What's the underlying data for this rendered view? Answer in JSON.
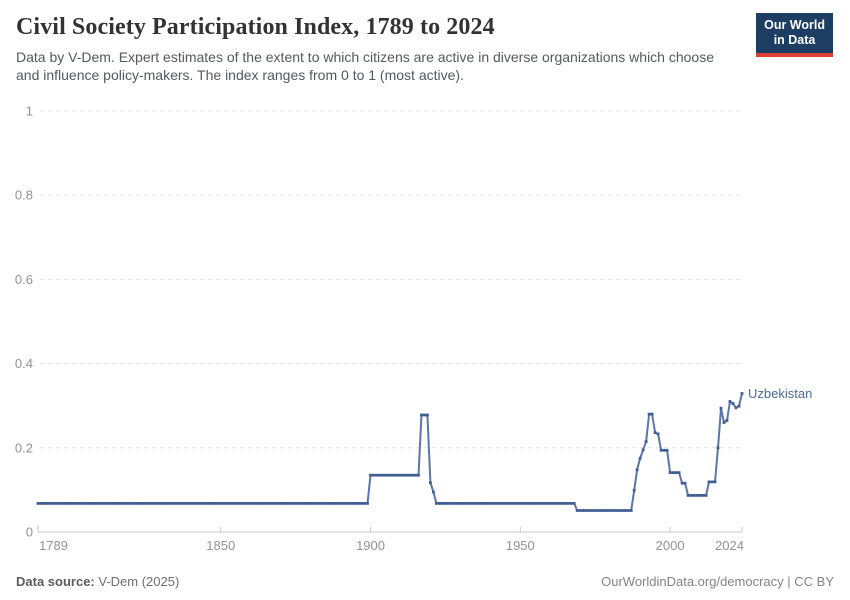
{
  "header": {
    "title": "Civil Society Participation Index, 1789 to 2024",
    "subtitle": "Data by V-Dem. Expert estimates of the extent to which citizens are active in diverse organizations which choose and influence policy-makers. The index ranges from 0 to 1 (most active).",
    "logo": {
      "line1": "Our World",
      "line2": "in Data",
      "bg_color": "#1d3d63",
      "accent_color": "#dc3e32"
    }
  },
  "footer": {
    "source_label": "Data source:",
    "source_value": " V-Dem (2025)",
    "credit": "OurWorldinData.org/democracy | CC BY"
  },
  "chart_data": {
    "type": "line",
    "title": "Civil Society Participation Index, 1789 to 2024",
    "xlabel": "",
    "ylabel": "",
    "x": {
      "min": 1789,
      "max": 2024,
      "ticks": [
        1789,
        1850,
        1900,
        1950,
        2000,
        2024
      ]
    },
    "y": {
      "min": 0,
      "max": 1,
      "ticks": [
        0,
        0.2,
        0.4,
        0.6,
        0.8,
        1
      ]
    },
    "grid": "horizontal-dashed",
    "legend": "end-of-line-label",
    "layout": {
      "grid_color": "#e0e0e0",
      "axis_color": "#c8c8c8",
      "tick_color": "#939393",
      "tick_font_size": 13
    },
    "series": [
      {
        "name": "Uzbekistan",
        "color": "#5b76a8",
        "marker_color": "#3f5c91",
        "label_color": "#4c6a9c",
        "value_hold": "each [year,value] pair holds for subsequent years until the next breakpoint; markers are drawn for every year 1789-2024",
        "points": [
          [
            1789,
            0.068
          ],
          [
            1900,
            0.135
          ],
          [
            1917,
            0.278
          ],
          [
            1920,
            0.117
          ],
          [
            1921,
            0.095
          ],
          [
            1922,
            0.068
          ],
          [
            1969,
            0.051
          ],
          [
            1988,
            0.099
          ],
          [
            1989,
            0.148
          ],
          [
            1990,
            0.175
          ],
          [
            1991,
            0.195
          ],
          [
            1992,
            0.215
          ],
          [
            1993,
            0.28
          ],
          [
            1995,
            0.236
          ],
          [
            1996,
            0.233
          ],
          [
            1997,
            0.194
          ],
          [
            2000,
            0.141
          ],
          [
            2004,
            0.116
          ],
          [
            2006,
            0.087
          ],
          [
            2013,
            0.119
          ],
          [
            2016,
            0.2
          ],
          [
            2017,
            0.294
          ],
          [
            2018,
            0.26
          ],
          [
            2019,
            0.265
          ],
          [
            2020,
            0.31
          ],
          [
            2021,
            0.305
          ],
          [
            2022,
            0.295
          ],
          [
            2023,
            0.299
          ],
          [
            2024,
            0.329
          ]
        ]
      }
    ]
  }
}
